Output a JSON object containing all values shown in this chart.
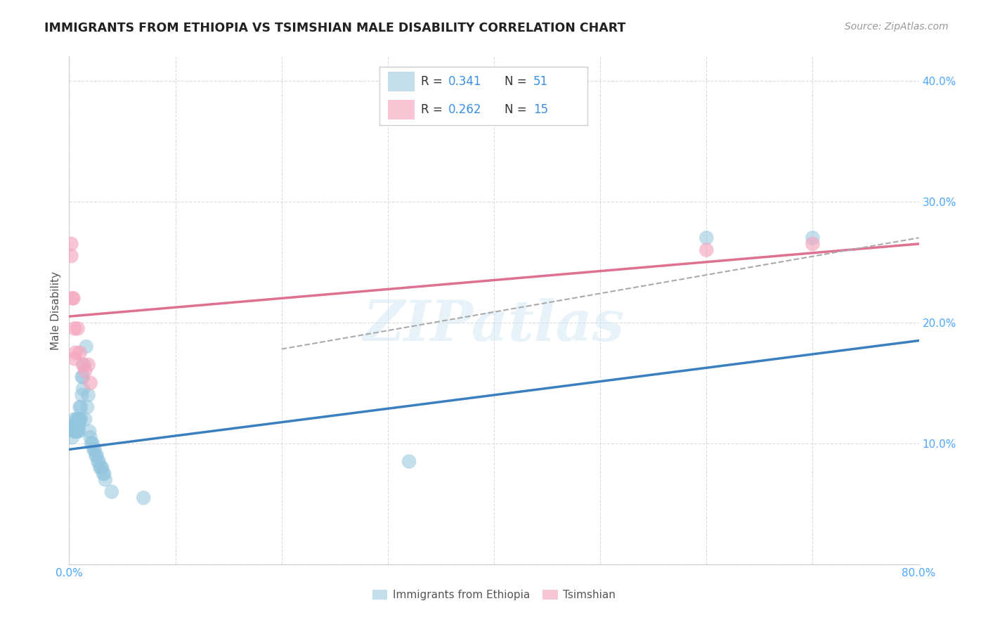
{
  "title": "IMMIGRANTS FROM ETHIOPIA VS TSIMSHIAN MALE DISABILITY CORRELATION CHART",
  "source": "Source: ZipAtlas.com",
  "ylabel": "Male Disability",
  "xlim": [
    0.0,
    0.8
  ],
  "ylim": [
    0.0,
    0.42
  ],
  "xticks": [
    0.0,
    0.1,
    0.2,
    0.3,
    0.4,
    0.5,
    0.6,
    0.7,
    0.8
  ],
  "xticklabels": [
    "0.0%",
    "",
    "",
    "",
    "",
    "",
    "",
    "",
    "80.0%"
  ],
  "yticks": [
    0.0,
    0.1,
    0.2,
    0.3,
    0.4
  ],
  "yticklabels": [
    "",
    "10.0%",
    "20.0%",
    "30.0%",
    "40.0%"
  ],
  "grid_color": "#cccccc",
  "background_color": "#ffffff",
  "watermark": "ZIPatlas",
  "ethiopia_color": "#92c5de",
  "tsimshian_color": "#f4a6be",
  "legend_R1_label": "R = ",
  "legend_R1_val": "0.341",
  "legend_N1_label": "N = ",
  "legend_N1_val": "51",
  "legend_R2_label": "R = ",
  "legend_R2_val": "0.262",
  "legend_N2_label": "N = ",
  "legend_N2_val": "15",
  "ethiopia_x": [
    0.003,
    0.003,
    0.004,
    0.005,
    0.005,
    0.005,
    0.006,
    0.006,
    0.007,
    0.007,
    0.007,
    0.008,
    0.008,
    0.008,
    0.009,
    0.009,
    0.009,
    0.01,
    0.01,
    0.011,
    0.011,
    0.012,
    0.012,
    0.013,
    0.013,
    0.014,
    0.015,
    0.016,
    0.017,
    0.018,
    0.019,
    0.02,
    0.021,
    0.022,
    0.023,
    0.024,
    0.025,
    0.026,
    0.027,
    0.028,
    0.029,
    0.03,
    0.031,
    0.032,
    0.033,
    0.034,
    0.04,
    0.07,
    0.32,
    0.6,
    0.7
  ],
  "ethiopia_y": [
    0.115,
    0.105,
    0.11,
    0.115,
    0.11,
    0.12,
    0.11,
    0.115,
    0.115,
    0.11,
    0.12,
    0.115,
    0.12,
    0.11,
    0.12,
    0.115,
    0.11,
    0.13,
    0.12,
    0.12,
    0.13,
    0.14,
    0.155,
    0.145,
    0.155,
    0.165,
    0.12,
    0.18,
    0.13,
    0.14,
    0.11,
    0.105,
    0.1,
    0.1,
    0.095,
    0.095,
    0.09,
    0.09,
    0.085,
    0.085,
    0.08,
    0.08,
    0.08,
    0.075,
    0.075,
    0.07,
    0.06,
    0.055,
    0.085,
    0.27,
    0.27
  ],
  "tsimshian_x": [
    0.002,
    0.002,
    0.003,
    0.004,
    0.005,
    0.005,
    0.006,
    0.008,
    0.01,
    0.013,
    0.015,
    0.018,
    0.02,
    0.6,
    0.7
  ],
  "tsimshian_y": [
    0.255,
    0.265,
    0.22,
    0.22,
    0.17,
    0.195,
    0.175,
    0.195,
    0.175,
    0.165,
    0.16,
    0.165,
    0.15,
    0.26,
    0.265
  ],
  "ethiopia_trend": [
    0.0,
    0.8,
    0.095,
    0.185
  ],
  "tsimshian_trend": [
    0.0,
    0.8,
    0.205,
    0.265
  ],
  "dashed_trend": [
    0.2,
    0.8,
    0.178,
    0.27
  ],
  "tick_color": "#4da6ff",
  "label_color": "#555555"
}
